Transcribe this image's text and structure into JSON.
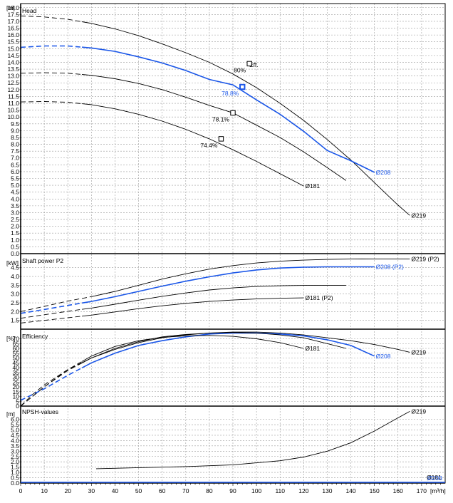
{
  "chart_data": {
    "type": "line",
    "colors": {
      "highlight": "#1a56e8",
      "other": "#000000",
      "grid": "#9a9a9a"
    },
    "x": {
      "unit": "[m³/h]",
      "range": [
        0,
        180
      ],
      "ticks": [
        "0",
        "10",
        "20",
        "30",
        "40",
        "50",
        "60",
        "70",
        "80",
        "90",
        "100",
        "110",
        "120",
        "130",
        "140",
        "150",
        "160",
        "170"
      ]
    },
    "panels": [
      {
        "key": "head",
        "title": "Head",
        "unit": "[m]",
        "range": [
          0,
          18.3
        ],
        "ticks": [
          "18.0",
          "17.5",
          "17.0",
          "16.5",
          "16.0",
          "15.5",
          "15.0",
          "14.5",
          "14.0",
          "13.5",
          "13.0",
          "12.5",
          "12.0",
          "11.5",
          "11.0",
          "10.5",
          "10.0",
          "9.5",
          "9.0",
          "8.5",
          "8.0",
          "7.5",
          "7.0",
          "6.5",
          "6.0",
          "5.5",
          "5.0",
          "4.5",
          "4.0",
          "3.5",
          "3.0",
          "2.5",
          "2.0",
          "1.5",
          "1.0",
          "0.5",
          "0.0"
        ],
        "series": [
          {
            "name": "Ø219",
            "highlight": false,
            "dashed_until": 26,
            "points": [
              [
                0,
                17.4
              ],
              [
                10,
                17.32
              ],
              [
                20,
                17.15
              ],
              [
                30,
                16.85
              ],
              [
                40,
                16.45
              ],
              [
                50,
                15.95
              ],
              [
                60,
                15.35
              ],
              [
                70,
                14.7
              ],
              [
                80,
                14.0
              ],
              [
                90,
                13.15
              ],
              [
                100,
                12.15
              ],
              [
                110,
                11.0
              ],
              [
                120,
                9.75
              ],
              [
                130,
                8.35
              ],
              [
                140,
                6.85
              ],
              [
                150,
                5.2
              ],
              [
                160,
                3.55
              ],
              [
                165,
                2.8
              ]
            ]
          },
          {
            "name": "Ø208",
            "highlight": true,
            "dashed_until": 26,
            "points": [
              [
                0,
                15.1
              ],
              [
                10,
                15.2
              ],
              [
                20,
                15.2
              ],
              [
                30,
                15.05
              ],
              [
                40,
                14.8
              ],
              [
                50,
                14.4
              ],
              [
                60,
                13.95
              ],
              [
                70,
                13.4
              ],
              [
                80,
                12.75
              ],
              [
                90,
                12.35
              ],
              [
                100,
                11.25
              ],
              [
                110,
                10.2
              ],
              [
                120,
                8.95
              ],
              [
                130,
                7.55
              ],
              [
                140,
                6.8
              ],
              [
                150,
                5.95
              ]
            ]
          },
          {
            "name": "",
            "highlight": false,
            "dashed_until": 26,
            "points": [
              [
                0,
                13.2
              ],
              [
                10,
                13.24
              ],
              [
                20,
                13.2
              ],
              [
                30,
                13.05
              ],
              [
                40,
                12.8
              ],
              [
                50,
                12.45
              ],
              [
                60,
                12.0
              ],
              [
                70,
                11.45
              ],
              [
                80,
                10.85
              ],
              [
                90,
                10.3
              ],
              [
                100,
                9.4
              ],
              [
                110,
                8.5
              ],
              [
                120,
                7.45
              ],
              [
                130,
                6.3
              ],
              [
                138,
                5.35
              ]
            ]
          },
          {
            "name": "Ø181",
            "highlight": false,
            "dashed_until": 26,
            "points": [
              [
                0,
                11.1
              ],
              [
                10,
                11.13
              ],
              [
                20,
                11.08
              ],
              [
                30,
                10.9
              ],
              [
                40,
                10.6
              ],
              [
                50,
                10.2
              ],
              [
                60,
                9.7
              ],
              [
                70,
                9.1
              ],
              [
                80,
                8.4
              ],
              [
                90,
                7.6
              ],
              [
                100,
                6.75
              ],
              [
                110,
                5.85
              ],
              [
                120,
                4.95
              ]
            ]
          }
        ],
        "markers": [
          {
            "x": 97,
            "y": 13.9,
            "highlight": false,
            "label": "80%"
          },
          {
            "x": 94,
            "y": 12.2,
            "highlight": true,
            "label": "78.8%"
          },
          {
            "x": 90,
            "y": 10.3,
            "highlight": false,
            "label": "78.1%"
          },
          {
            "x": 85,
            "y": 8.4,
            "highlight": false,
            "label": "74.4%"
          }
        ],
        "annotations": [
          "Eff."
        ]
      },
      {
        "key": "power",
        "title": "Shaft power P2",
        "unit": "[kW]",
        "range": [
          1.0,
          5.3
        ],
        "ticks": [
          "4.5",
          "4.0",
          "3.5",
          "3.0",
          "2.5",
          "2.0",
          "1.5"
        ],
        "series": [
          {
            "name": "Ø219 (P2)",
            "highlight": false,
            "dashed_until": 30,
            "points": [
              [
                0,
                2.0
              ],
              [
                10,
                2.3
              ],
              [
                20,
                2.6
              ],
              [
                30,
                2.85
              ],
              [
                40,
                3.15
              ],
              [
                50,
                3.5
              ],
              [
                60,
                3.85
              ],
              [
                70,
                4.15
              ],
              [
                80,
                4.42
              ],
              [
                90,
                4.62
              ],
              [
                100,
                4.77
              ],
              [
                110,
                4.87
              ],
              [
                120,
                4.93
              ],
              [
                130,
                4.97
              ],
              [
                140,
                4.99
              ],
              [
                150,
                5.0
              ],
              [
                160,
                5.0
              ],
              [
                165,
                5.0
              ]
            ]
          },
          {
            "name": "Ø208 (P2)",
            "highlight": true,
            "dashed_until": 26,
            "points": [
              [
                0,
                1.9
              ],
              [
                10,
                2.12
              ],
              [
                20,
                2.35
              ],
              [
                30,
                2.58
              ],
              [
                40,
                2.85
              ],
              [
                50,
                3.15
              ],
              [
                60,
                3.45
              ],
              [
                70,
                3.73
              ],
              [
                80,
                3.98
              ],
              [
                90,
                4.2
              ],
              [
                100,
                4.37
              ],
              [
                110,
                4.48
              ],
              [
                120,
                4.53
              ],
              [
                130,
                4.55
              ],
              [
                140,
                4.55
              ],
              [
                150,
                4.55
              ]
            ]
          },
          {
            "name": "",
            "highlight": false,
            "dashed_until": 26,
            "points": [
              [
                0,
                1.62
              ],
              [
                10,
                1.82
              ],
              [
                20,
                2.02
              ],
              [
                30,
                2.2
              ],
              [
                40,
                2.42
              ],
              [
                50,
                2.65
              ],
              [
                60,
                2.87
              ],
              [
                70,
                3.06
              ],
              [
                80,
                3.23
              ],
              [
                90,
                3.35
              ],
              [
                100,
                3.43
              ],
              [
                110,
                3.47
              ],
              [
                120,
                3.49
              ],
              [
                130,
                3.5
              ],
              [
                138,
                3.5
              ]
            ]
          },
          {
            "name": "Ø181 (P2)",
            "highlight": false,
            "dashed_until": 26,
            "points": [
              [
                0,
                1.35
              ],
              [
                10,
                1.5
              ],
              [
                20,
                1.65
              ],
              [
                30,
                1.8
              ],
              [
                40,
                1.98
              ],
              [
                50,
                2.17
              ],
              [
                60,
                2.33
              ],
              [
                70,
                2.47
              ],
              [
                80,
                2.58
              ],
              [
                90,
                2.66
              ],
              [
                100,
                2.72
              ],
              [
                110,
                2.76
              ],
              [
                120,
                2.78
              ]
            ]
          }
        ]
      },
      {
        "key": "efficiency",
        "title": "Efficiency",
        "unit": "[%]",
        "range": [
          0,
          80
        ],
        "ticks": [
          "70",
          "65",
          "60",
          "55",
          "50",
          "45",
          "40",
          "35",
          "30",
          "25",
          "20",
          "15",
          "10",
          "5",
          "0"
        ],
        "series": [
          {
            "name": "Ø219",
            "highlight": false,
            "dashed_until": 26,
            "points": [
              [
                0,
                0
              ],
              [
                5,
                12
              ],
              [
                10,
                22
              ],
              [
                20,
                38
              ],
              [
                30,
                50
              ],
              [
                40,
                59
              ],
              [
                50,
                66
              ],
              [
                60,
                71
              ],
              [
                70,
                74
              ],
              [
                80,
                76
              ],
              [
                90,
                77
              ],
              [
                100,
                77
              ],
              [
                110,
                76
              ],
              [
                120,
                74
              ],
              [
                130,
                71
              ],
              [
                140,
                68
              ],
              [
                150,
                64
              ],
              [
                160,
                59
              ],
              [
                165,
                56
              ]
            ]
          },
          {
            "name": "Ø208",
            "highlight": true,
            "dashed_until": 26,
            "points": [
              [
                0,
                6
              ],
              [
                5,
                12
              ],
              [
                10,
                18
              ],
              [
                20,
                32
              ],
              [
                30,
                45
              ],
              [
                40,
                55
              ],
              [
                50,
                63
              ],
              [
                60,
                68
              ],
              [
                70,
                72
              ],
              [
                80,
                75
              ],
              [
                90,
                76
              ],
              [
                100,
                76
              ],
              [
                110,
                75
              ],
              [
                120,
                73
              ],
              [
                130,
                69
              ],
              [
                140,
                63
              ],
              [
                150,
                52
              ]
            ]
          },
          {
            "name": "",
            "highlight": false,
            "dashed_until": 26,
            "points": [
              [
                0,
                0
              ],
              [
                10,
                20
              ],
              [
                20,
                37
              ],
              [
                30,
                50
              ],
              [
                40,
                60
              ],
              [
                50,
                67
              ],
              [
                60,
                72
              ],
              [
                70,
                74.5
              ],
              [
                80,
                76
              ],
              [
                90,
                76.5
              ],
              [
                100,
                76
              ],
              [
                110,
                74
              ],
              [
                120,
                71
              ],
              [
                130,
                65
              ],
              [
                138,
                60
              ]
            ]
          },
          {
            "name": "Ø181",
            "highlight": false,
            "dashed_until": 26,
            "points": [
              [
                0,
                0
              ],
              [
                10,
                20
              ],
              [
                20,
                38
              ],
              [
                30,
                52
              ],
              [
                40,
                62
              ],
              [
                50,
                68
              ],
              [
                60,
                71.5
              ],
              [
                70,
                73
              ],
              [
                80,
                73.5
              ],
              [
                90,
                72.5
              ],
              [
                100,
                70
              ],
              [
                110,
                66
              ],
              [
                120,
                60
              ]
            ]
          }
        ]
      },
      {
        "key": "npsh",
        "title": "NPSH-values",
        "unit": "[m]",
        "range": [
          0,
          7.25
        ],
        "ticks": [
          "6.0",
          "5.5",
          "5.0",
          "4.5",
          "4.0",
          "3.5",
          "3.0",
          "2.5",
          "2.0",
          "1.5",
          "1.0",
          "0.5",
          "0.0"
        ],
        "series": [
          {
            "name": "Ø219",
            "highlight": false,
            "dashed_until": 0,
            "points": [
              [
                32,
                1.35
              ],
              [
                50,
                1.45
              ],
              [
                70,
                1.55
              ],
              [
                90,
                1.72
              ],
              [
                110,
                2.1
              ],
              [
                120,
                2.45
              ],
              [
                130,
                3.0
              ],
              [
                140,
                3.8
              ],
              [
                150,
                4.9
              ],
              [
                158,
                5.9
              ],
              [
                165,
                6.75
              ]
            ]
          }
        ],
        "axis_labels": [
          "Ø181",
          "Ø208"
        ]
      }
    ]
  }
}
